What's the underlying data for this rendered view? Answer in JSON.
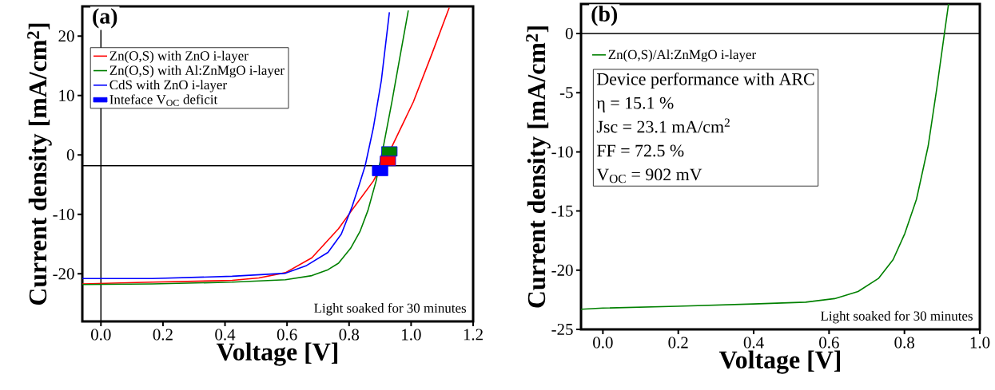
{
  "chart_data": [
    {
      "type": "line",
      "title": "(a)",
      "xlabel": "Voltage [V]",
      "ylabel": "Current density [mA/cm$^{2}$]",
      "xlim": [
        -0.06,
        1.2
      ],
      "ylim": [
        -28,
        25
      ],
      "xticks": [
        {
          "value": 0,
          "label": "0.0"
        },
        {
          "value": 0.2,
          "label": "0.2"
        },
        {
          "value": 0.4,
          "label": "0.4"
        },
        {
          "value": 0.6,
          "label": "0.6"
        },
        {
          "value": 0.8,
          "label": "0.8"
        },
        {
          "value": 1.0,
          "label": "1.0"
        },
        {
          "value": 1.2,
          "label": "1.2"
        }
      ],
      "yticks": [
        -20,
        -10,
        0,
        10,
        20
      ],
      "legend": "top left",
      "ref_lines": [
        {
          "axis": "y",
          "value": -1.8,
          "color": "#000000"
        },
        {
          "axis": "x",
          "value": 0,
          "color": "#000000"
        }
      ],
      "annotations": [
        "Light soaked for 30 minutes"
      ],
      "series": [
        {
          "name": "Zn(O,S) with ZnO i-layer",
          "color": "#ff0000",
          "x": [
            -0.06,
            0.165,
            0.423,
            0.509,
            0.595,
            0.68,
            0.766,
            0.809,
            0.878,
            0.938,
            1.007,
            1.067,
            1.123
          ],
          "values": [
            -21.7,
            -21.4,
            -21.1,
            -20.7,
            -19.8,
            -17.3,
            -12.4,
            -9.3,
            -4.4,
            1.4,
            8.9,
            17.0,
            24.8
          ]
        },
        {
          "name": "Zn(O,S) with Al:ZnMgO i-layer",
          "color": "#008000",
          "x": [
            -0.06,
            0.165,
            0.423,
            0.595,
            0.68,
            0.732,
            0.766,
            0.805,
            0.835,
            0.861,
            0.887,
            0.912,
            0.938,
            0.964,
            0.991
          ],
          "values": [
            -21.8,
            -21.7,
            -21.4,
            -21.0,
            -20.3,
            -19.3,
            -18.2,
            -15.7,
            -12.9,
            -9.3,
            -4.4,
            1.8,
            8.9,
            16.5,
            24.3
          ]
        },
        {
          "name": "CdS with ZnO i-layer",
          "color": "#0000ff",
          "x": [
            -0.06,
            0.165,
            0.423,
            0.595,
            0.663,
            0.732,
            0.775,
            0.809,
            0.831,
            0.852,
            0.878,
            0.904,
            0.93
          ],
          "values": [
            -20.8,
            -20.8,
            -20.4,
            -19.9,
            -18.6,
            -16.4,
            -13.3,
            -8.8,
            -5.3,
            -1.8,
            4.5,
            12.5,
            24.0
          ]
        },
        {
          "name": "Inteface V$_{OC}$ deficit",
          "color": "#0000ff",
          "type": "bar",
          "x": [
            0.93,
            0.925,
            0.9
          ],
          "base": [
            -0.2,
            -1.8,
            -3.5
          ],
          "values": [
            1.6,
            1.6,
            1.7
          ],
          "colors": [
            "#008000",
            "#ff0000",
            "#0000ff"
          ]
        }
      ]
    },
    {
      "type": "line",
      "title": "(b)",
      "xlabel": "Voltage [V]",
      "ylabel": "Current density [mA/cm$^{2}$]",
      "xlim": [
        -0.058,
        1.0
      ],
      "ylim": [
        -25,
        2.5
      ],
      "xticks": [
        {
          "value": 0,
          "label": "0.0"
        },
        {
          "value": 0.2,
          "label": "0.2"
        },
        {
          "value": 0.4,
          "label": "0.4"
        },
        {
          "value": 0.6,
          "label": "0.6"
        },
        {
          "value": 0.8,
          "label": "0.8"
        },
        {
          "value": 1.0,
          "label": "1.0"
        }
      ],
      "yticks": [
        -25,
        -20,
        -15,
        -10,
        -5,
        0
      ],
      "legend": "top left",
      "ref_lines": [
        {
          "axis": "y",
          "value": 0,
          "color": "#000000"
        }
      ],
      "annotations": [
        "Light soaked for 30 minutes",
        "Device performance with ARC",
        "η = 15.1 %",
        "Jsc = 23.1 mA/cm$^{2}$",
        "FF = 72.5 %",
        "V$_{OC}$ = 902 mV"
      ],
      "series": [
        {
          "name": "Zn(O,S)/Al:ZnMgO i-layer",
          "color": "#008000",
          "x": [
            -0.058,
            0,
            0.197,
            0.399,
            0.538,
            0.615,
            0.677,
            0.731,
            0.77,
            0.801,
            0.832,
            0.863,
            0.886,
            0.906,
            0.917
          ],
          "values": [
            -23.3,
            -23.2,
            -23.05,
            -22.85,
            -22.7,
            -22.4,
            -21.8,
            -20.7,
            -19.1,
            -16.9,
            -14.0,
            -9.5,
            -4.6,
            0,
            2.5
          ]
        }
      ]
    }
  ]
}
